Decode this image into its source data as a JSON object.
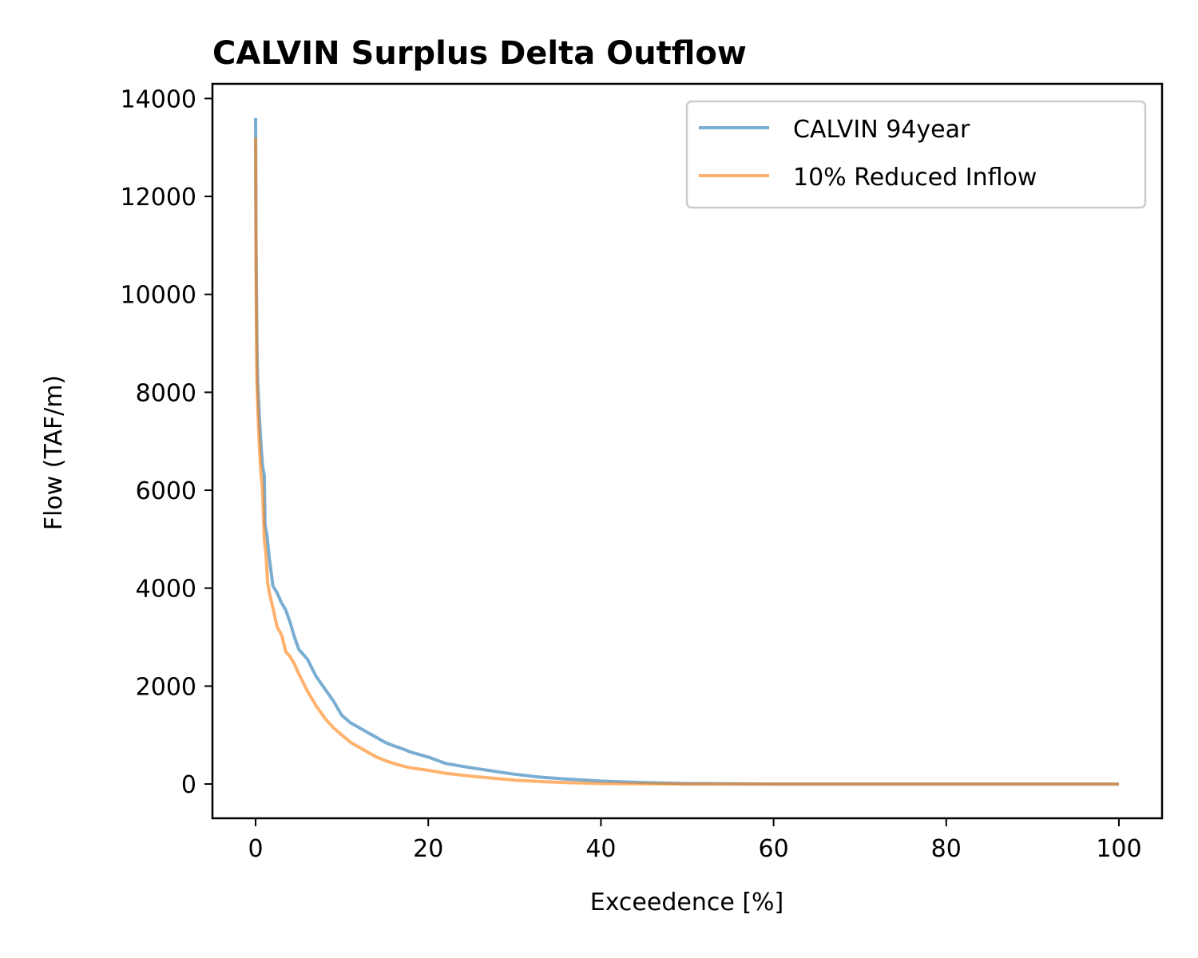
{
  "chart_data": {
    "type": "line",
    "title": "CALVIN Surplus Delta Outflow",
    "xlabel": "Exceedence [%]",
    "ylabel": "Flow (TAF/m)",
    "xlim": [
      -5,
      105
    ],
    "ylim": [
      -700,
      14300
    ],
    "xticks": [
      0,
      20,
      40,
      60,
      80,
      100
    ],
    "yticks": [
      0,
      2000,
      4000,
      6000,
      8000,
      10000,
      12000,
      14000
    ],
    "grid": false,
    "legend_position": "top-right",
    "series": [
      {
        "name": "CALVIN 94year",
        "color": "#1f77b4",
        "opacity": 0.6,
        "x": [
          0,
          0.05,
          0.15,
          0.25,
          0.4,
          0.6,
          0.8,
          1.0,
          1.1,
          1.3,
          1.6,
          2.0,
          2.5,
          3.0,
          3.5,
          4.0,
          4.5,
          5.0,
          5.5,
          6.0,
          7.0,
          8.0,
          9.0,
          10.0,
          11.0,
          12.0,
          13.0,
          14.0,
          15.0,
          16.0,
          17.0,
          18.0,
          20.0,
          22.0,
          25.0,
          28.0,
          30.0,
          33.0,
          36.0,
          40.0,
          45.0,
          50.0,
          55.0,
          60.0,
          70.0,
          80.0,
          90.0,
          100.0
        ],
        "y": [
          13600,
          11000,
          9000,
          8200,
          7600,
          7000,
          6500,
          6300,
          5300,
          5100,
          4600,
          4050,
          3900,
          3700,
          3550,
          3300,
          3000,
          2750,
          2650,
          2550,
          2200,
          1950,
          1700,
          1400,
          1250,
          1150,
          1050,
          950,
          850,
          780,
          720,
          650,
          550,
          420,
          330,
          250,
          200,
          140,
          100,
          60,
          30,
          10,
          5,
          0,
          0,
          0,
          0,
          0
        ]
      },
      {
        "name": "10% Reduced Inflow",
        "color": "#ff7f0e",
        "opacity": 0.6,
        "x": [
          0,
          0.05,
          0.15,
          0.25,
          0.4,
          0.6,
          0.8,
          1.0,
          1.2,
          1.4,
          1.6,
          2.0,
          2.5,
          3.0,
          3.5,
          4.0,
          4.5,
          5.0,
          6.0,
          7.0,
          8.0,
          9.0,
          10.0,
          11.0,
          12.0,
          13.0,
          14.0,
          15.0,
          16.0,
          17.0,
          18.0,
          20.0,
          22.0,
          25.0,
          28.0,
          30.0,
          33.0,
          36.0,
          40.0,
          45.0,
          50.0,
          60.0,
          70.0,
          80.0,
          90.0,
          100.0
        ],
        "y": [
          13200,
          10500,
          8200,
          7700,
          7000,
          6400,
          6000,
          5000,
          4700,
          4100,
          3900,
          3600,
          3200,
          3050,
          2700,
          2600,
          2450,
          2250,
          1900,
          1600,
          1350,
          1150,
          1000,
          850,
          750,
          650,
          550,
          480,
          420,
          370,
          330,
          280,
          220,
          160,
          110,
          80,
          50,
          30,
          10,
          3,
          0,
          0,
          0,
          0,
          0,
          0
        ]
      }
    ]
  }
}
